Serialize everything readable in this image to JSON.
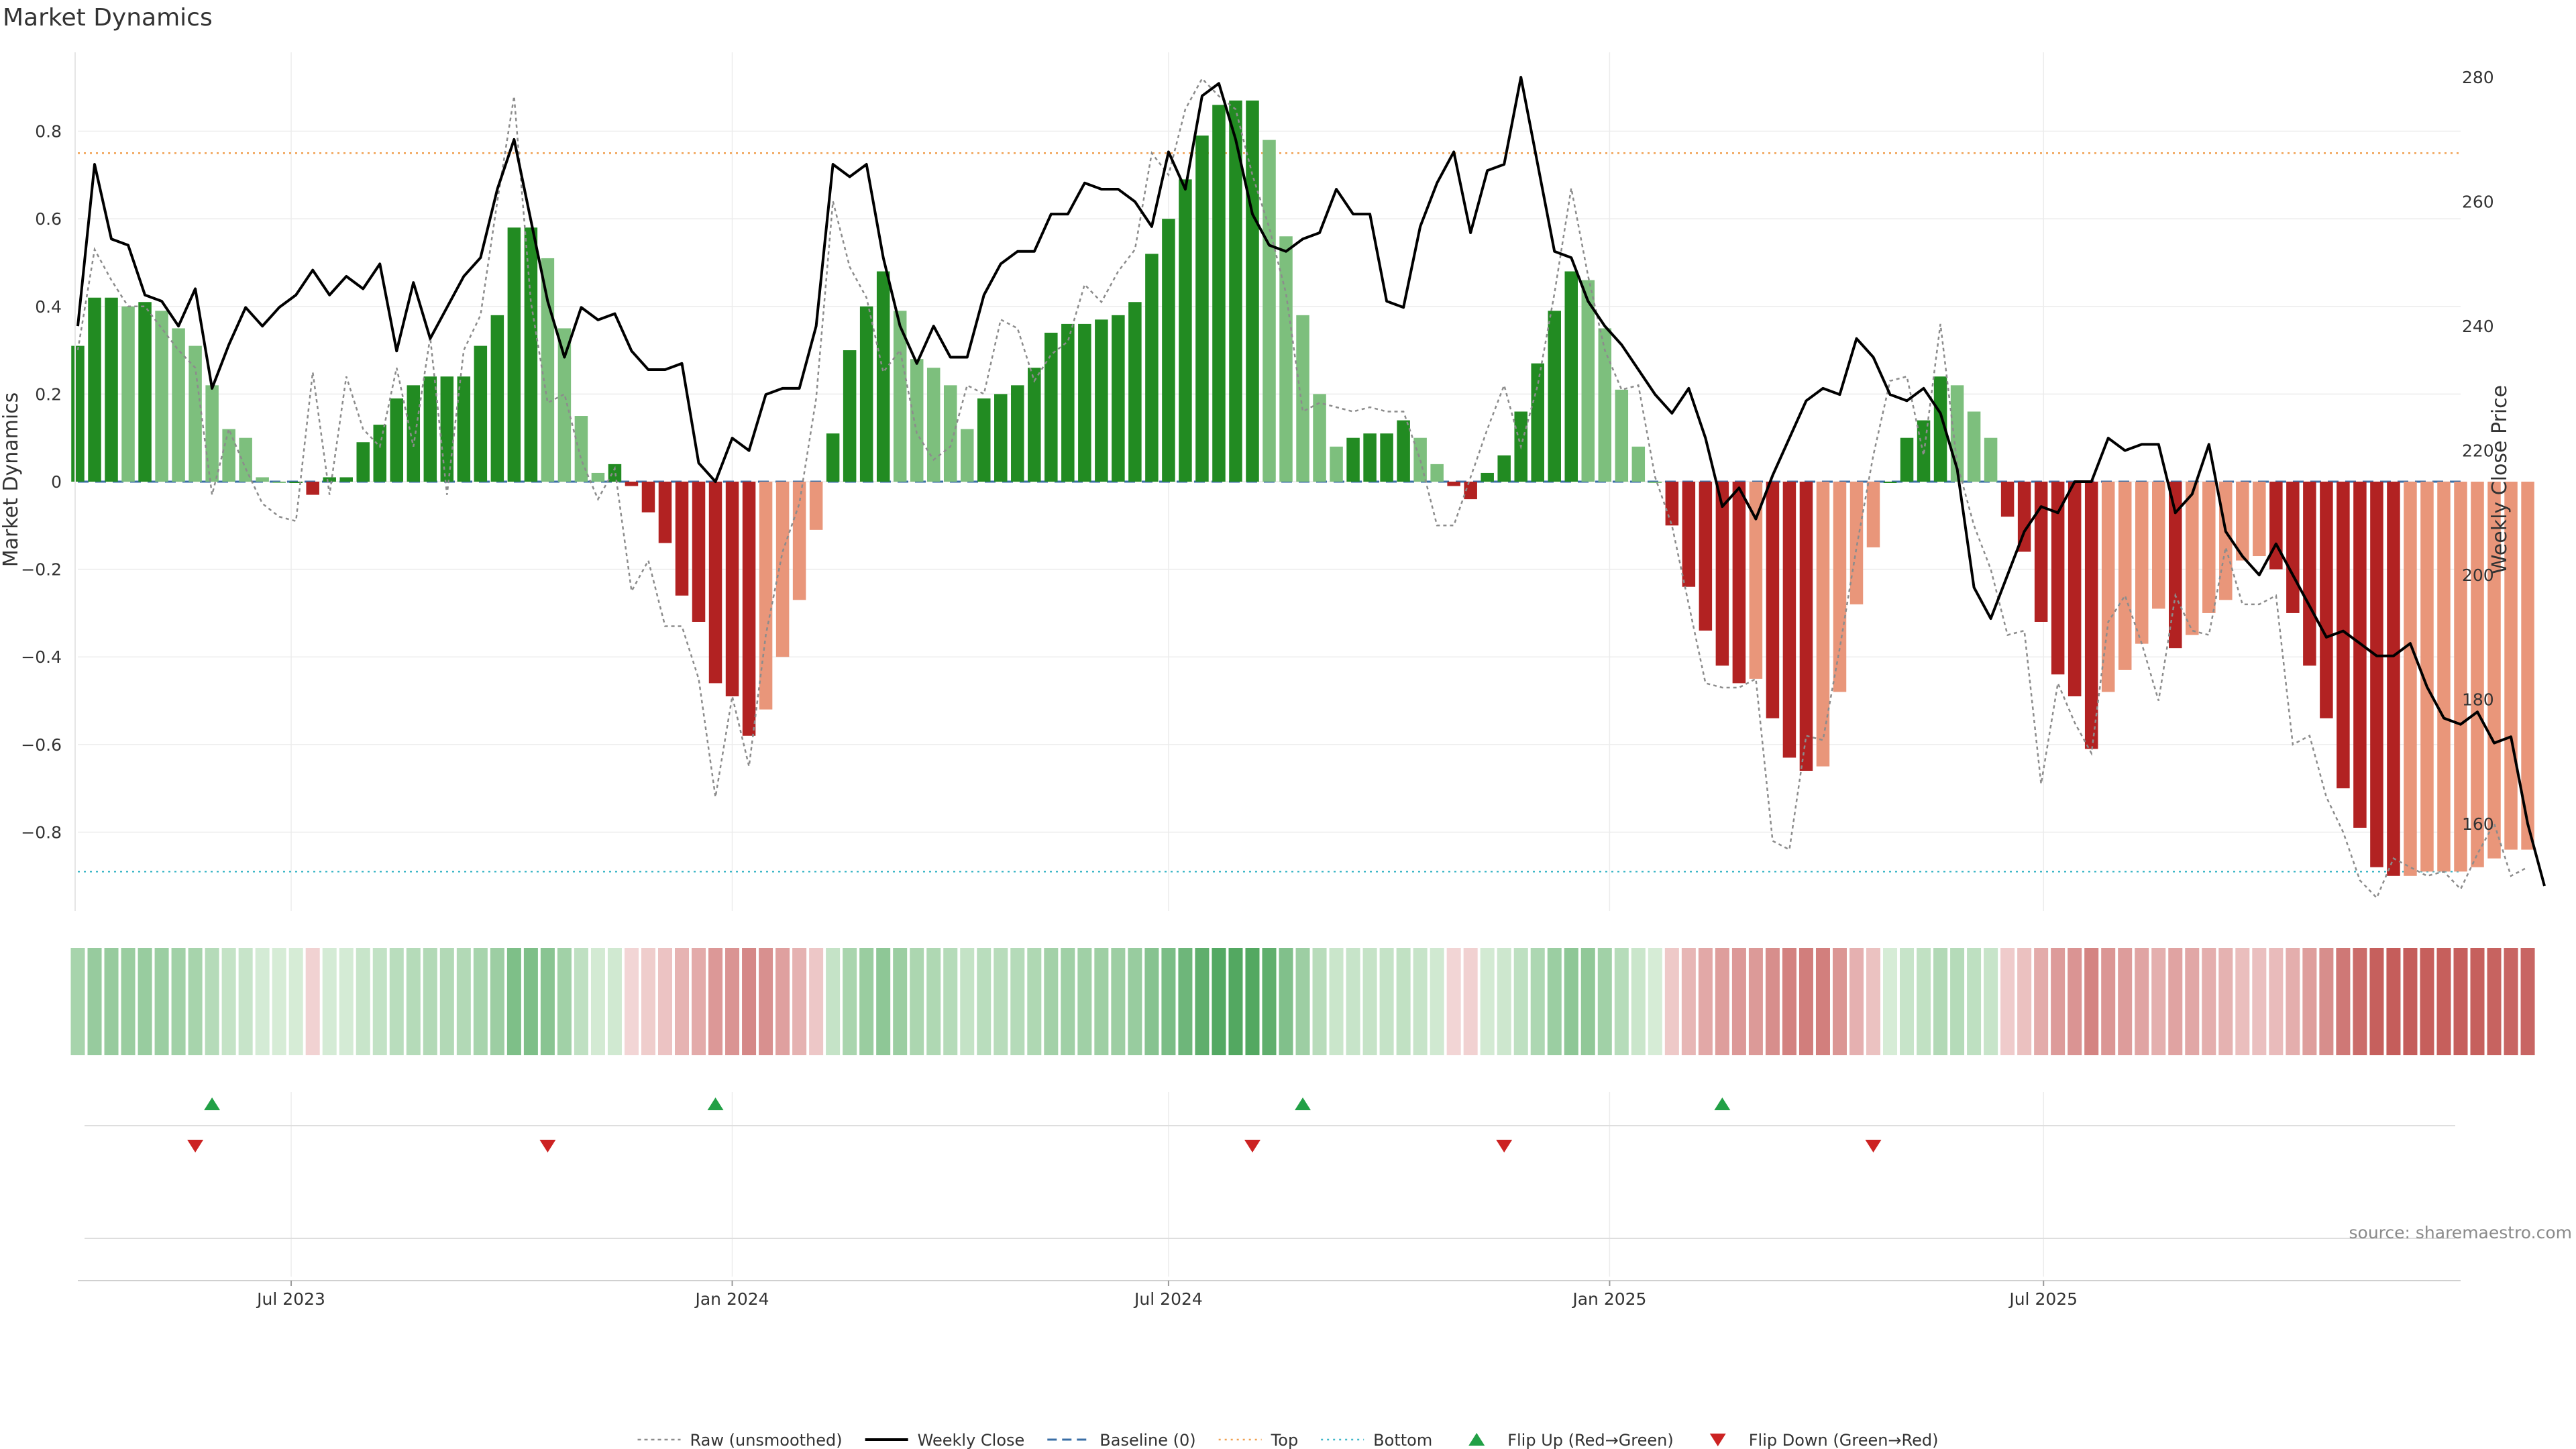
{
  "chart_data": {
    "type": "bar",
    "title": "Market Dynamics",
    "ylabel_left": "Market Dynamics",
    "ylabel_right": "Weekly Close Price",
    "source": "source: sharemaestro.com",
    "xlim": [
      "2023-04-03",
      "2025-12-22"
    ],
    "ylim_left": [
      -0.98,
      0.98
    ],
    "ylim_right": [
      146,
      284
    ],
    "yticks_left": [
      -0.8,
      -0.6,
      -0.4,
      -0.2,
      0,
      0.2,
      0.4,
      0.6,
      0.8
    ],
    "yticks_right": [
      160,
      180,
      200,
      220,
      240,
      260,
      280
    ],
    "xticks": [
      {
        "date": "2023-07-01",
        "label": "Jul 2023"
      },
      {
        "date": "2024-01-01",
        "label": "Jan 2024"
      },
      {
        "date": "2024-07-01",
        "label": "Jul 2024"
      },
      {
        "date": "2025-01-01",
        "label": "Jan 2025"
      },
      {
        "date": "2025-07-01",
        "label": "Jul 2025"
      }
    ],
    "grid": true,
    "legend_position": "bottom-center",
    "start_date": "2023-04-03",
    "top_level": 0.75,
    "bottom_level": -0.89,
    "colors": {
      "strong_green": "#228b22",
      "light_green": "#7dbf7d",
      "strong_red": "#b22222",
      "light_red": "#e9967a",
      "weekly_close": "#000000",
      "raw": "#8c8c8c",
      "baseline": "#3a6ea5",
      "top": "#f0a050",
      "bottom": "#40b8c8",
      "flip_up": "#22a046",
      "flip_down": "#cc2222"
    },
    "series": [
      {
        "name": "Market Dynamics",
        "values": [
          0.31,
          0.42,
          0.42,
          0.4,
          0.41,
          0.39,
          0.35,
          0.31,
          0.22,
          0.12,
          0.1,
          0.01,
          0.0,
          0.0,
          -0.03,
          0.01,
          0.01,
          0.09,
          0.13,
          0.19,
          0.22,
          0.24,
          0.24,
          0.24,
          0.31,
          0.38,
          0.58,
          0.58,
          0.51,
          0.35,
          0.15,
          0.02,
          0.04,
          -0.01,
          -0.07,
          -0.14,
          -0.26,
          -0.32,
          -0.46,
          -0.49,
          -0.58,
          -0.52,
          -0.4,
          -0.27,
          -0.11,
          0.11,
          0.3,
          0.4,
          0.48,
          0.39,
          0.28,
          0.26,
          0.22,
          0.12,
          0.19,
          0.2,
          0.22,
          0.26,
          0.34,
          0.36,
          0.36,
          0.37,
          0.38,
          0.41,
          0.52,
          0.6,
          0.69,
          0.79,
          0.86,
          0.87,
          0.87,
          0.78,
          0.56,
          0.38,
          0.2,
          0.08,
          0.1,
          0.11,
          0.11,
          0.14,
          0.1,
          0.04,
          -0.01,
          -0.04,
          0.02,
          0.06,
          0.16,
          0.27,
          0.39,
          0.48,
          0.46,
          0.35,
          0.21,
          0.08,
          0.0,
          -0.1,
          -0.24,
          -0.34,
          -0.42,
          -0.46,
          -0.45,
          -0.54,
          -0.63,
          -0.66,
          -0.65,
          -0.48,
          -0.28,
          -0.15,
          0.0,
          0.1,
          0.14,
          0.24,
          0.22,
          0.16,
          0.1,
          -0.08,
          -0.16,
          -0.32,
          -0.44,
          -0.49,
          -0.61,
          -0.48,
          -0.43,
          -0.37,
          -0.29,
          -0.38,
          -0.35,
          -0.3,
          -0.27,
          -0.18,
          -0.17,
          -0.2,
          -0.3,
          -0.42,
          -0.54,
          -0.7,
          -0.79,
          -0.88,
          -0.9,
          -0.9,
          -0.89,
          -0.89,
          -0.89,
          -0.88,
          -0.86,
          -0.84,
          -0.84
        ]
      },
      {
        "name": "Raw (unsmoothed)",
        "values": [
          0.3,
          0.53,
          0.46,
          0.4,
          0.4,
          0.35,
          0.3,
          0.26,
          -0.03,
          0.12,
          0.03,
          -0.05,
          -0.08,
          -0.09,
          0.25,
          -0.03,
          0.24,
          0.12,
          0.08,
          0.26,
          0.08,
          0.33,
          -0.03,
          0.3,
          0.38,
          0.64,
          0.88,
          0.41,
          0.18,
          0.2,
          0.05,
          -0.04,
          0.03,
          -0.25,
          -0.18,
          -0.33,
          -0.33,
          -0.45,
          -0.72,
          -0.49,
          -0.65,
          -0.35,
          -0.16,
          -0.05,
          0.19,
          0.64,
          0.49,
          0.42,
          0.25,
          0.3,
          0.11,
          0.05,
          0.08,
          0.22,
          0.2,
          0.37,
          0.35,
          0.23,
          0.29,
          0.32,
          0.45,
          0.41,
          0.48,
          0.53,
          0.75,
          0.7,
          0.85,
          0.92,
          0.88,
          0.85,
          0.7,
          0.58,
          0.43,
          0.16,
          0.18,
          0.17,
          0.16,
          0.17,
          0.16,
          0.16,
          0.05,
          -0.1,
          -0.1,
          0.01,
          0.12,
          0.22,
          0.08,
          0.22,
          0.43,
          0.67,
          0.47,
          0.3,
          0.21,
          0.22,
          0.01,
          -0.1,
          -0.28,
          -0.46,
          -0.47,
          -0.47,
          -0.45,
          -0.82,
          -0.84,
          -0.58,
          -0.59,
          -0.38,
          -0.15,
          0.06,
          0.23,
          0.24,
          0.06,
          0.36,
          0.04,
          -0.1,
          -0.2,
          -0.35,
          -0.34,
          -0.69,
          -0.46,
          -0.55,
          -0.62,
          -0.32,
          -0.26,
          -0.37,
          -0.5,
          -0.26,
          -0.34,
          -0.35,
          -0.15,
          -0.28,
          -0.28,
          -0.26,
          -0.6,
          -0.58,
          -0.72,
          -0.8,
          -0.91,
          -0.95,
          -0.86,
          -0.88,
          -0.9,
          -0.89,
          -0.93,
          -0.85,
          -0.78,
          -0.9,
          -0.88
        ]
      },
      {
        "name": "Weekly Close",
        "values": [
          240,
          266,
          254,
          253,
          245,
          244,
          240,
          246,
          230,
          237,
          243,
          240,
          243,
          245,
          249,
          245,
          248,
          246,
          250,
          236,
          247,
          238,
          243,
          248,
          251,
          262,
          270,
          257,
          244,
          235,
          243,
          241,
          242,
          236,
          233,
          233,
          234,
          218,
          215,
          222,
          220,
          229,
          230,
          230,
          240,
          266,
          264,
          266,
          251,
          240,
          234,
          240,
          235,
          235,
          245,
          250,
          252,
          252,
          258,
          258,
          263,
          262,
          262,
          260,
          256,
          268,
          262,
          277,
          279,
          270,
          258,
          253,
          252,
          254,
          255,
          262,
          258,
          258,
          244,
          243,
          256,
          263,
          268,
          255,
          265,
          266,
          280,
          266,
          252,
          251,
          244,
          240,
          237,
          233,
          229,
          226,
          230,
          222,
          211,
          214,
          209,
          216,
          222,
          228,
          230,
          229,
          238,
          235,
          229,
          228,
          230,
          226,
          217,
          198,
          193,
          200,
          207,
          211,
          210,
          215,
          215,
          222,
          220,
          221,
          221,
          210,
          213,
          221,
          207,
          203,
          200,
          205,
          200,
          195,
          190,
          191,
          189,
          187,
          187,
          189,
          182,
          177,
          176,
          178,
          173,
          174,
          160,
          150
        ]
      },
      {
        "name": "Baseline (0)"
      },
      {
        "name": "Top"
      },
      {
        "name": "Bottom"
      },
      {
        "name": "Flip Up (Red→Green)",
        "dates": [
          "2023-05-29",
          "2023-12-25",
          "2024-08-26",
          "2025-02-17"
        ]
      },
      {
        "name": "Flip Down (Green→Red)",
        "dates": [
          "2023-05-22",
          "2023-10-16",
          "2024-08-05",
          "2024-11-18",
          "2025-04-21"
        ]
      }
    ]
  }
}
